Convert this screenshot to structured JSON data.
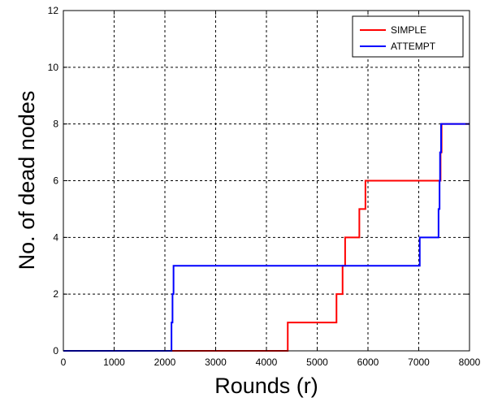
{
  "chart_data": {
    "type": "line",
    "title": "",
    "xlabel": "Rounds (r)",
    "ylabel": "No. of dead nodes",
    "xlim": [
      0,
      8000
    ],
    "ylim": [
      0,
      12
    ],
    "xticks": [
      0,
      1000,
      2000,
      3000,
      4000,
      5000,
      6000,
      7000,
      8000
    ],
    "yticks": [
      0,
      2,
      4,
      6,
      8,
      10,
      12
    ],
    "xtick_labels": [
      "0",
      "1000",
      "2000",
      "3000",
      "4000",
      "5000",
      "6000",
      "7000",
      "8000"
    ],
    "ytick_labels": [
      "0",
      "2",
      "4",
      "6",
      "8",
      "10",
      "12"
    ],
    "grid": true,
    "legend_position": "top-right",
    "series": [
      {
        "name": "SIMPLE",
        "color": "#ff0000",
        "step": true,
        "points": [
          [
            0,
            0
          ],
          [
            4420,
            0
          ],
          [
            4420,
            1
          ],
          [
            5380,
            1
          ],
          [
            5380,
            2
          ],
          [
            5500,
            2
          ],
          [
            5500,
            3
          ],
          [
            5550,
            3
          ],
          [
            5550,
            4
          ],
          [
            5830,
            4
          ],
          [
            5830,
            5
          ],
          [
            5950,
            5
          ],
          [
            5950,
            6
          ],
          [
            7430,
            6
          ],
          [
            7430,
            7
          ],
          [
            7450,
            7
          ],
          [
            7450,
            8
          ],
          [
            8000,
            8
          ]
        ]
      },
      {
        "name": "ATTEMPT",
        "color": "#0000ff",
        "step": true,
        "points": [
          [
            0,
            0
          ],
          [
            2130,
            0
          ],
          [
            2130,
            1
          ],
          [
            2150,
            1
          ],
          [
            2150,
            2
          ],
          [
            2170,
            2
          ],
          [
            2170,
            3
          ],
          [
            7020,
            3
          ],
          [
            7020,
            4
          ],
          [
            7390,
            4
          ],
          [
            7390,
            5
          ],
          [
            7410,
            5
          ],
          [
            7410,
            6
          ],
          [
            7420,
            6
          ],
          [
            7420,
            7
          ],
          [
            7440,
            7
          ],
          [
            7440,
            8
          ],
          [
            8000,
            8
          ]
        ]
      }
    ]
  }
}
